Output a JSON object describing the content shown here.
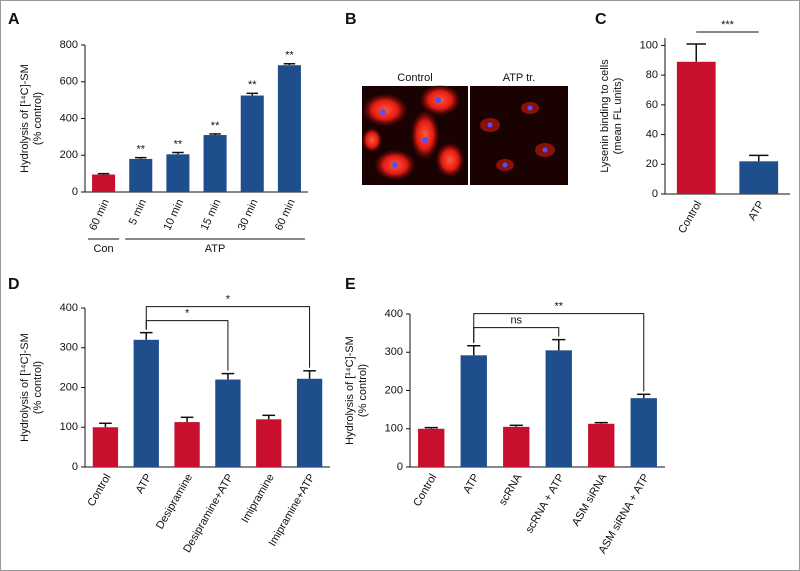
{
  "chart_data": [
    {
      "type": "bar",
      "panel_label": "A",
      "ylabel": [
        "Hydrolysis of [¹⁴C]-SM",
        "(% control)"
      ],
      "categories": [
        "60 min",
        "5 min",
        "10 min",
        "15 min",
        "30 min",
        "60 min"
      ],
      "values": [
        95,
        180,
        205,
        310,
        525,
        690
      ],
      "errors": [
        5,
        7,
        10,
        6,
        12,
        8
      ],
      "colors": [
        "#c8102e",
        "#1f4e8c",
        "#1f4e8c",
        "#1f4e8c",
        "#1f4e8c",
        "#1f4e8c"
      ],
      "annotations": [
        null,
        "**",
        "**",
        "**",
        "**",
        "**"
      ],
      "groups": [
        {
          "label": "Con",
          "from": 0,
          "to": 0
        },
        {
          "label": "ATP",
          "from": 1,
          "to": 5
        }
      ],
      "ylim": [
        0,
        800
      ],
      "yticks": [
        0,
        200,
        400,
        600,
        800
      ]
    },
    {
      "type": "bar",
      "panel_label": "C",
      "ylabel": [
        "Lysenin binding to cells",
        "(mean FL units)"
      ],
      "categories": [
        "Control",
        "ATP"
      ],
      "values": [
        89,
        22
      ],
      "errors": [
        12,
        4
      ],
      "colors": [
        "#c8102e",
        "#1f4e8c"
      ],
      "brackets": [
        {
          "from": 0,
          "to": 1,
          "label": "***"
        }
      ],
      "ylim": [
        0,
        105
      ],
      "yticks": [
        0,
        20,
        40,
        60,
        80,
        100
      ]
    },
    {
      "type": "bar",
      "panel_label": "D",
      "ylabel": [
        "Hydrolysis of [¹⁴C]-SM",
        "(% control)"
      ],
      "categories": [
        "Control",
        "ATP",
        "Desipramine",
        "Desipramine+ATP",
        "Imipramine",
        "Imipramine+ATP"
      ],
      "values": [
        100,
        320,
        113,
        220,
        120,
        222
      ],
      "errors": [
        10,
        18,
        12,
        15,
        10,
        20
      ],
      "colors": [
        "#c8102e",
        "#1f4e8c",
        "#c8102e",
        "#1f4e8c",
        "#c8102e",
        "#1f4e8c"
      ],
      "brackets": [
        {
          "from": 1,
          "to": 3,
          "label": "*"
        },
        {
          "from": 1,
          "to": 5,
          "label": "*"
        }
      ],
      "ylim": [
        0,
        400
      ],
      "yticks": [
        0,
        100,
        200,
        300,
        400
      ]
    },
    {
      "type": "bar",
      "panel_label": "E",
      "ylabel": [
        "Hydrolysis of [¹⁴C]-SM",
        "(% control)"
      ],
      "categories": [
        "Control",
        "ATP",
        "scRNA",
        "scRNA + ATP",
        "ASM siRNA",
        "ASM siRNA + ATP"
      ],
      "values": [
        100,
        292,
        105,
        305,
        113,
        180
      ],
      "errors": [
        3,
        25,
        4,
        28,
        3,
        10
      ],
      "colors": [
        "#c8102e",
        "#1f4e8c",
        "#c8102e",
        "#1f4e8c",
        "#c8102e",
        "#1f4e8c"
      ],
      "brackets": [
        {
          "from": 1,
          "to": 3,
          "label": "ns"
        },
        {
          "from": 1,
          "to": 5,
          "label": "**"
        }
      ],
      "ylim": [
        0,
        400
      ],
      "yticks": [
        0,
        100,
        200,
        300,
        400
      ]
    }
  ],
  "image_panel": {
    "panel_label": "B",
    "labels": [
      "Control",
      "ATP tr."
    ]
  }
}
